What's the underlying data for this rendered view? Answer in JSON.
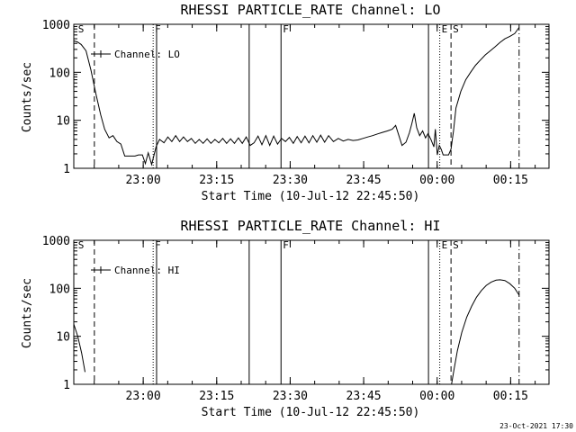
{
  "footer": {
    "timestamp": "23-Oct-2021 17:30"
  },
  "chart_data": [
    {
      "type": "line",
      "title": "RHESSI PARTICLE_RATE Channel: LO",
      "xlabel": "Start Time (10-Jul-12 22:45:50)",
      "ylabel": "Counts/sec",
      "yscale": "log",
      "ylim": [
        1,
        1000
      ],
      "yticks": [
        1,
        10,
        100,
        1000
      ],
      "ytick_labels": [
        "1",
        "10",
        "100",
        "1000"
      ],
      "xlim_minutes": [
        0,
        97
      ],
      "xticks_minutes": [
        14.17,
        29.17,
        44.17,
        59.17,
        74.17,
        89.17
      ],
      "xtick_labels": [
        "23:00",
        "23:15",
        "23:30",
        "23:45",
        "00:00",
        "00:15"
      ],
      "legend": {
        "entries": [
          "Channel: LO"
        ],
        "position": "top-left"
      },
      "markers": [
        {
          "label": "S",
          "minutes": 0.5,
          "style": "none"
        },
        {
          "label": "",
          "minutes": 4.2,
          "style": "dashed"
        },
        {
          "label": "F",
          "minutes": 16.2,
          "style": "dotted"
        },
        {
          "label": "",
          "minutes": 16.9,
          "style": "solid"
        },
        {
          "label": "",
          "minutes": 35.8,
          "style": "solid"
        },
        {
          "label": "F",
          "minutes": 42.3,
          "style": "solid"
        },
        {
          "label": "",
          "minutes": 72.4,
          "style": "solid"
        },
        {
          "label": "E",
          "minutes": 74.7,
          "style": "dotted"
        },
        {
          "label": "S",
          "minutes": 77.0,
          "style": "dashed"
        },
        {
          "label": "",
          "minutes": 90.9,
          "style": "dashdot"
        }
      ],
      "series": [
        {
          "name": "Channel: LO",
          "segments": [
            [
              [
                0.0,
                450
              ],
              [
                0.7,
                430
              ],
              [
                1.5,
                380
              ],
              [
                2.5,
                280
              ],
              [
                3.5,
                110
              ],
              [
                4.5,
                36
              ],
              [
                5.5,
                13
              ],
              [
                6.3,
                6.5
              ],
              [
                7.2,
                4.3
              ],
              [
                8.0,
                4.8
              ],
              [
                8.8,
                3.6
              ],
              [
                9.6,
                3.2
              ],
              [
                10.4,
                1.8
              ],
              [
                12.5,
                1.8
              ],
              [
                13.2,
                1.9
              ],
              [
                14.0,
                1.9
              ],
              [
                14.6,
                1.25
              ],
              [
                15.2,
                2.1
              ],
              [
                15.9,
                1.2
              ],
              [
                16.8,
                2.8
              ],
              [
                17.5,
                4.0
              ],
              [
                18.4,
                3.4
              ],
              [
                19.2,
                4.5
              ],
              [
                20.0,
                3.6
              ],
              [
                20.8,
                4.8
              ],
              [
                21.6,
                3.6
              ],
              [
                22.4,
                4.5
              ],
              [
                23.2,
                3.6
              ],
              [
                24.0,
                4.2
              ],
              [
                24.8,
                3.3
              ],
              [
                25.6,
                4.0
              ],
              [
                26.4,
                3.3
              ],
              [
                27.2,
                4.1
              ],
              [
                28.0,
                3.3
              ],
              [
                28.8,
                4.0
              ],
              [
                29.6,
                3.4
              ],
              [
                30.4,
                4.2
              ],
              [
                31.2,
                3.3
              ],
              [
                32.0,
                4.1
              ],
              [
                32.8,
                3.3
              ],
              [
                33.6,
                4.3
              ],
              [
                34.4,
                3.3
              ],
              [
                35.2,
                4.5
              ],
              [
                36.0,
                3.0
              ],
              [
                36.8,
                3.4
              ],
              [
                37.6,
                4.7
              ],
              [
                38.4,
                3.1
              ],
              [
                39.2,
                4.8
              ],
              [
                40.0,
                3.0
              ],
              [
                40.8,
                4.7
              ],
              [
                41.6,
                3.2
              ],
              [
                42.4,
                4.2
              ],
              [
                43.2,
                3.6
              ],
              [
                44.0,
                4.4
              ],
              [
                44.8,
                3.3
              ],
              [
                45.6,
                4.6
              ],
              [
                46.4,
                3.4
              ],
              [
                47.2,
                4.7
              ],
              [
                48.0,
                3.4
              ],
              [
                48.8,
                4.8
              ],
              [
                49.6,
                3.5
              ],
              [
                50.4,
                4.9
              ],
              [
                51.2,
                3.5
              ],
              [
                52.0,
                4.8
              ],
              [
                53.0,
                3.6
              ],
              [
                54.0,
                4.2
              ],
              [
                55.0,
                3.7
              ],
              [
                56.0,
                4.0
              ],
              [
                57.0,
                3.8
              ],
              [
                58.0,
                3.9
              ],
              [
                59.0,
                4.2
              ],
              [
                60.0,
                4.5
              ],
              [
                61.0,
                4.8
              ],
              [
                62.0,
                5.2
              ],
              [
                63.0,
                5.6
              ],
              [
                64.0,
                6.0
              ],
              [
                65.0,
                6.5
              ],
              [
                65.7,
                7.8
              ],
              [
                66.3,
                5.0
              ],
              [
                67.0,
                3.0
              ],
              [
                67.8,
                3.5
              ],
              [
                68.5,
                5.5
              ],
              [
                69.0,
                8.5
              ],
              [
                69.5,
                14.0
              ],
              [
                70.0,
                7.0
              ],
              [
                70.6,
                4.8
              ],
              [
                71.2,
                6.0
              ],
              [
                71.8,
                4.3
              ],
              [
                72.3,
                5.3
              ],
              [
                72.9,
                4.0
              ],
              [
                73.5,
                2.8
              ],
              [
                73.8,
                6.5
              ],
              [
                74.2,
                1.9
              ],
              [
                74.6,
                3.0
              ],
              [
                75.0,
                2.5
              ],
              [
                75.4,
                1.9
              ],
              [
                76.0,
                1.9
              ],
              [
                76.5,
                1.9
              ],
              [
                77.0,
                2.5
              ],
              [
                77.5,
                6.0
              ],
              [
                78.0,
                18
              ],
              [
                79.0,
                40
              ],
              [
                80.0,
                70
              ],
              [
                81.0,
                100
              ],
              [
                82.0,
                140
              ],
              [
                83.0,
                180
              ],
              [
                84.0,
                230
              ],
              [
                85.0,
                280
              ],
              [
                86.0,
                340
              ],
              [
                87.0,
                420
              ],
              [
                88.0,
                500
              ],
              [
                89.0,
                560
              ],
              [
                90.0,
                640
              ],
              [
                90.9,
                860
              ]
            ]
          ]
        }
      ]
    },
    {
      "type": "line",
      "title": "RHESSI PARTICLE_RATE Channel: HI",
      "xlabel": "Start Time (10-Jul-12 22:45:50)",
      "ylabel": "Counts/sec",
      "yscale": "log",
      "ylim": [
        1,
        1000
      ],
      "yticks": [
        1,
        10,
        100,
        1000
      ],
      "ytick_labels": [
        "1",
        "10",
        "100",
        "1000"
      ],
      "xlim_minutes": [
        0,
        97
      ],
      "xticks_minutes": [
        14.17,
        29.17,
        44.17,
        59.17,
        74.17,
        89.17
      ],
      "xtick_labels": [
        "23:00",
        "23:15",
        "23:30",
        "23:45",
        "00:00",
        "00:15"
      ],
      "legend": {
        "entries": [
          "Channel: HI"
        ],
        "position": "top-left"
      },
      "markers": [
        {
          "label": "S",
          "minutes": 0.5,
          "style": "none"
        },
        {
          "label": "",
          "minutes": 4.2,
          "style": "dashed"
        },
        {
          "label": "F",
          "minutes": 16.2,
          "style": "dotted"
        },
        {
          "label": "",
          "minutes": 16.9,
          "style": "solid"
        },
        {
          "label": "",
          "minutes": 35.8,
          "style": "solid"
        },
        {
          "label": "F",
          "minutes": 42.3,
          "style": "solid"
        },
        {
          "label": "",
          "minutes": 72.4,
          "style": "solid"
        },
        {
          "label": "E",
          "minutes": 74.7,
          "style": "dotted"
        },
        {
          "label": "S",
          "minutes": 77.0,
          "style": "dashed"
        },
        {
          "label": "",
          "minutes": 90.9,
          "style": "dashdot"
        }
      ],
      "series": [
        {
          "name": "Channel: HI",
          "segments": [
            [
              [
                0.0,
                18
              ],
              [
                0.8,
                10
              ],
              [
                1.6,
                4.5
              ],
              [
                2.3,
                1.8
              ]
            ],
            [
              [
                77.1,
                1.0
              ],
              [
                77.6,
                2.0
              ],
              [
                78.3,
                5.0
              ],
              [
                79.2,
                12
              ],
              [
                80.2,
                25
              ],
              [
                81.2,
                42
              ],
              [
                82.2,
                65
              ],
              [
                83.2,
                90
              ],
              [
                84.2,
                115
              ],
              [
                85.2,
                135
              ],
              [
                86.2,
                148
              ],
              [
                87.0,
                150
              ],
              [
                88.0,
                145
              ],
              [
                89.0,
                125
              ],
              [
                90.0,
                100
              ],
              [
                90.9,
                72
              ]
            ]
          ]
        }
      ]
    }
  ]
}
